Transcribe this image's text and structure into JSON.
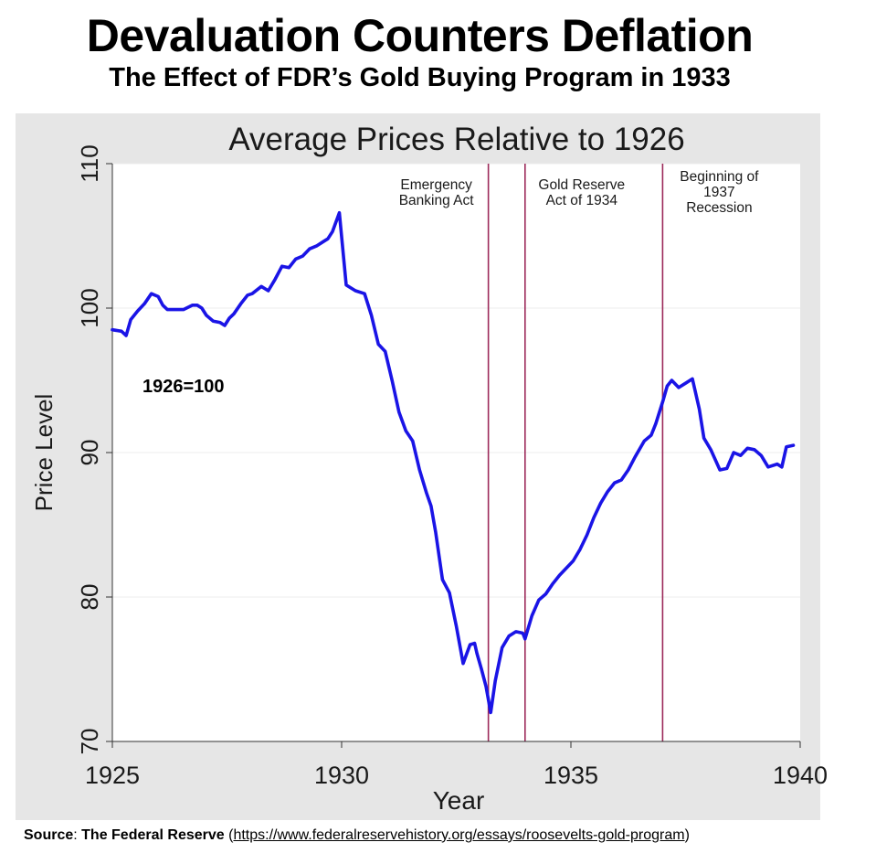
{
  "header": {
    "title": "Devaluation Counters Deflation",
    "subtitle": "The Effect of FDR’s Gold Buying Program in 1933"
  },
  "source": {
    "label": "Source",
    "separator": ": ",
    "name": "The Federal Reserve",
    "open_paren": " (",
    "url": "https://www.federalreservehistory.org/essays/roosevelts-gold-program",
    "close_paren": ")"
  },
  "chart_data": {
    "type": "line",
    "title": "Average Prices Relative to 1926",
    "xlabel": "Year",
    "ylabel": "Price Level",
    "xlim": [
      1925,
      1940
    ],
    "ylim": [
      70,
      110
    ],
    "xticks": [
      1925,
      1930,
      1935,
      1940
    ],
    "yticks": [
      70,
      80,
      90,
      100,
      110
    ],
    "grid": true,
    "annotation": "1926=100",
    "colors": {
      "series": "#1a14e6",
      "events": "#9c2a5a",
      "panel": "#e6e6e6",
      "plot": "#ffffff"
    },
    "events": [
      {
        "x": 1933.2,
        "label": [
          "Emergency",
          "Banking Act"
        ]
      },
      {
        "x": 1934.0,
        "label": [
          "Gold Reserve",
          "Act of 1934"
        ]
      },
      {
        "x": 1937.0,
        "label": [
          "Beginning of",
          "1937",
          "Recession"
        ]
      }
    ],
    "series": [
      {
        "x": [
          1925.0,
          1925.2,
          1925.3,
          1925.4,
          1925.55,
          1925.7,
          1925.85,
          1926.0,
          1926.1,
          1926.2,
          1926.35,
          1926.55,
          1926.75,
          1926.85,
          1926.95,
          1927.05,
          1927.2,
          1927.35,
          1927.45,
          1927.55,
          1927.65,
          1927.8,
          1927.95,
          1928.05,
          1928.25,
          1928.4,
          1928.55,
          1928.7,
          1928.85,
          1929.0,
          1929.15,
          1929.3,
          1929.45,
          1929.6,
          1929.7,
          1929.8,
          1929.95,
          1930.1,
          1930.3,
          1930.5,
          1930.65,
          1930.8,
          1930.95,
          1931.1,
          1931.25,
          1931.4,
          1931.55,
          1931.7,
          1931.85,
          1931.95,
          1932.05,
          1932.2,
          1932.35,
          1932.5,
          1932.65,
          1932.8,
          1932.9,
          1932.95,
          1933.05,
          1933.15,
          1933.25,
          1933.35,
          1933.5,
          1933.65,
          1933.8,
          1933.95,
          1934.0,
          1934.15,
          1934.3,
          1934.45,
          1934.6,
          1934.75,
          1934.9,
          1935.05,
          1935.2,
          1935.35,
          1935.5,
          1935.65,
          1935.8,
          1935.95,
          1936.1,
          1936.25,
          1936.4,
          1936.6,
          1936.75,
          1936.85,
          1937.0,
          1937.1,
          1937.2,
          1937.35,
          1937.5,
          1937.65,
          1937.8,
          1937.9,
          1938.05,
          1938.25,
          1938.4,
          1938.55,
          1938.7,
          1938.85,
          1939.0,
          1939.15,
          1939.3,
          1939.5,
          1939.6,
          1939.7,
          1939.85
        ],
        "y": [
          98.5,
          98.4,
          98.1,
          99.2,
          99.8,
          100.3,
          101.0,
          100.8,
          100.2,
          99.9,
          99.9,
          99.9,
          100.2,
          100.2,
          100.0,
          99.5,
          99.1,
          99.0,
          98.8,
          99.3,
          99.6,
          100.3,
          100.9,
          101.0,
          101.5,
          101.2,
          102.0,
          102.9,
          102.8,
          103.4,
          103.6,
          104.1,
          104.3,
          104.6,
          104.8,
          105.3,
          106.6,
          101.6,
          101.2,
          101.0,
          99.5,
          97.5,
          97.0,
          95.0,
          92.8,
          91.5,
          90.8,
          88.8,
          87.2,
          86.3,
          84.5,
          81.2,
          80.3,
          78.0,
          75.4,
          76.7,
          76.8,
          76.1,
          75.0,
          73.8,
          72.0,
          74.2,
          76.5,
          77.3,
          77.6,
          77.5,
          77.1,
          78.7,
          79.8,
          80.2,
          80.9,
          81.5,
          82.0,
          82.5,
          83.3,
          84.3,
          85.5,
          86.5,
          87.3,
          87.9,
          88.1,
          88.8,
          89.7,
          90.8,
          91.2,
          92.0,
          93.5,
          94.6,
          95.0,
          94.5,
          94.8,
          95.1,
          93.0,
          91.0,
          90.2,
          88.8,
          88.9,
          90.0,
          89.8,
          90.3,
          90.2,
          89.8,
          89.0,
          89.2,
          89.0,
          90.4,
          90.5
        ]
      }
    ]
  }
}
